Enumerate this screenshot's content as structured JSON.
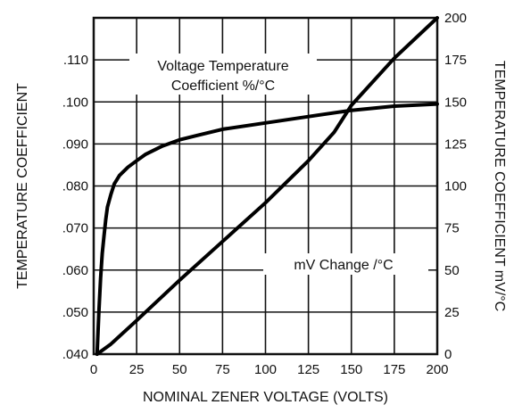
{
  "chart_data": {
    "type": "line",
    "xlabel": "NOMINAL ZENER VOLTAGE (VOLTS)",
    "ylabel_left": "TEMPERATURE  COEFFICIENT",
    "ylabel_right": "TEMPERATURE COEFFICIENT mV/°C",
    "xlim": [
      0,
      200
    ],
    "ylim_left": [
      0.04,
      0.12
    ],
    "ylim_right": [
      0,
      200
    ],
    "grid": true,
    "x_ticks": [
      "0",
      "25",
      "50",
      "75",
      "100",
      "125",
      "150",
      "175",
      "200"
    ],
    "y_left_ticks": [
      ".040",
      ".050",
      ".060",
      ".070",
      ".080",
      ".090",
      ".100",
      ".110"
    ],
    "y_right_ticks": [
      "0",
      "25",
      "50",
      "75",
      "100",
      "125",
      "150",
      "175",
      "200"
    ],
    "series": [
      {
        "axis": "left",
        "label_lines": [
          "Voltage Temperature",
          "Coefficient %/°C"
        ],
        "x": [
          2,
          3,
          4,
          5,
          6,
          7,
          8,
          10,
          12,
          15,
          20,
          25,
          30,
          40,
          50,
          60,
          75,
          100,
          125,
          150,
          175,
          200
        ],
        "y": [
          0.04,
          0.05,
          0.058,
          0.064,
          0.068,
          0.072,
          0.075,
          0.078,
          0.0805,
          0.0825,
          0.0845,
          0.086,
          0.0875,
          0.0895,
          0.091,
          0.092,
          0.0935,
          0.095,
          0.0965,
          0.098,
          0.099,
          0.0995
        ]
      },
      {
        "axis": "right",
        "label": "mV Change /°C",
        "x": [
          2,
          10,
          25,
          50,
          75,
          100,
          125,
          140,
          150,
          175,
          200
        ],
        "y": [
          0,
          6,
          20,
          44,
          67,
          90,
          115,
          132,
          148,
          176,
          200
        ]
      }
    ]
  }
}
